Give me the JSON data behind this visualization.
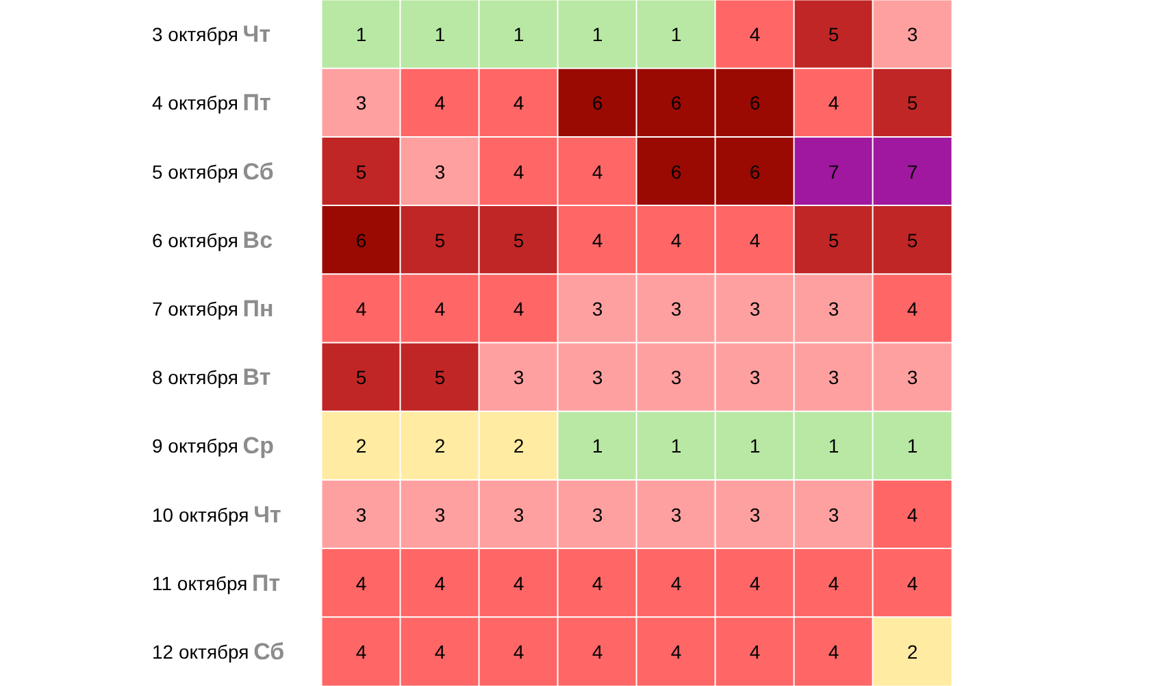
{
  "chart_data": {
    "type": "heatmap",
    "categories": [
      null,
      null,
      null,
      null,
      null,
      null,
      null,
      null
    ],
    "y_categories": [
      "3 октября Чт",
      "4 октября Пт",
      "5 октября Сб",
      "6 октября Вс",
      "7 октября Пн",
      "8 октября Вт",
      "9 октября Ср",
      "10 октября Чт",
      "11 октября Пт",
      "12 октября Сб"
    ],
    "cells": [
      [
        1,
        1,
        1,
        1,
        1,
        4,
        5,
        3
      ],
      [
        3,
        4,
        4,
        6,
        6,
        6,
        4,
        5
      ],
      [
        5,
        3,
        4,
        4,
        6,
        6,
        7,
        7
      ],
      [
        6,
        5,
        5,
        4,
        4,
        4,
        5,
        5
      ],
      [
        4,
        4,
        4,
        3,
        3,
        3,
        3,
        4
      ],
      [
        5,
        5,
        3,
        3,
        3,
        3,
        3,
        3
      ],
      [
        2,
        2,
        2,
        1,
        1,
        1,
        1,
        1
      ],
      [
        3,
        3,
        3,
        3,
        3,
        3,
        3,
        4
      ],
      [
        4,
        4,
        4,
        4,
        4,
        4,
        4,
        4
      ],
      [
        4,
        4,
        4,
        4,
        4,
        4,
        4,
        2
      ]
    ],
    "colors": [
      "#b8e8a4",
      "#ffeba2",
      "#ffa0a0",
      "#ff6666",
      "#c02626",
      "#9b0a02",
      "#a0189f"
    ],
    "data_labels": true,
    "tick_labels": "y"
  }
}
